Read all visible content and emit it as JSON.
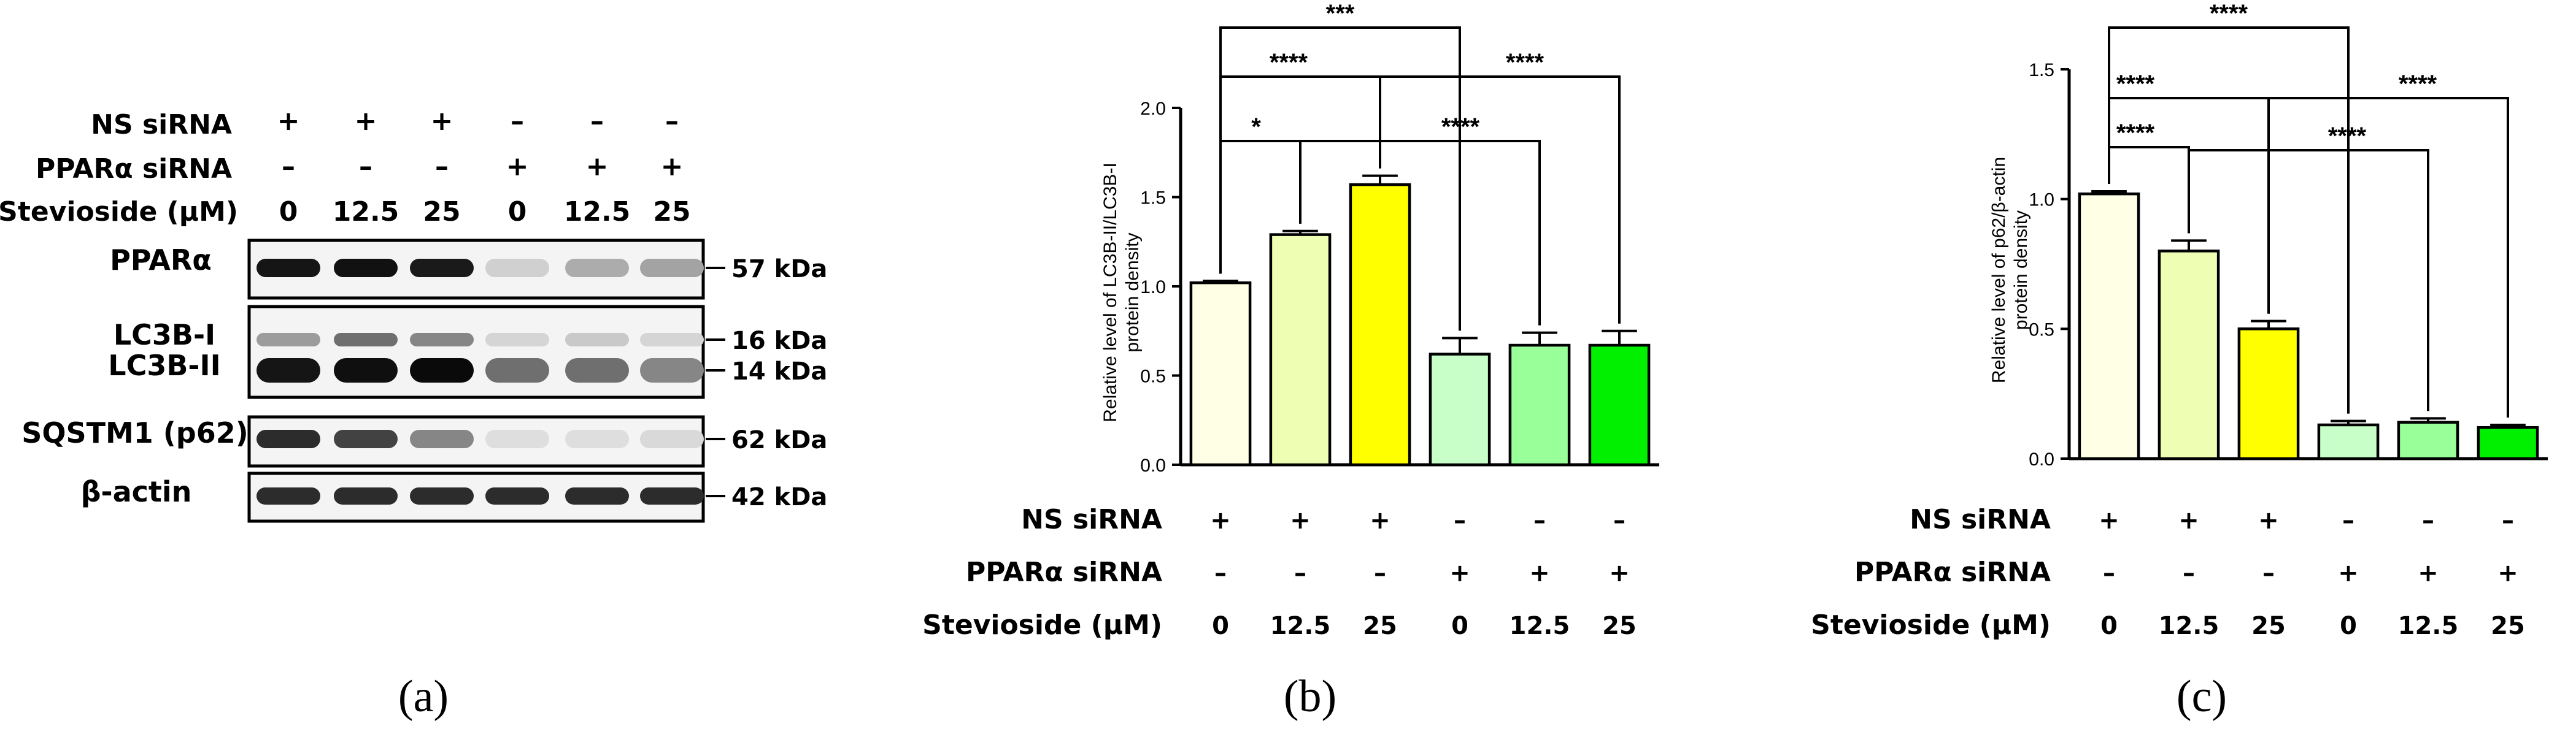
{
  "panel_labels": [
    "(a)",
    "(b)",
    "(c)"
  ],
  "western_blot": {
    "conditions": {
      "ns_label": "NS siRNA",
      "ppar_label": "PPARα siRNA",
      "stev_label": "Stevioside (μM)",
      "ns_signs": [
        "+",
        "+",
        "+",
        "–",
        "–",
        "–"
      ],
      "ppar_signs": [
        "–",
        "–",
        "–",
        "+",
        "+",
        "+"
      ],
      "doses": [
        "0",
        "12.5",
        "25",
        "0",
        "12.5",
        "25"
      ]
    },
    "bands": [
      {
        "label": "PPARα",
        "mw": "57 kDa",
        "intensity": [
          0.95,
          0.97,
          0.93,
          0.12,
          0.28,
          0.32
        ]
      },
      {
        "label": "LC3B-I",
        "mw": "16 kDa",
        "intensity": [
          0.35,
          0.55,
          0.45,
          0.1,
          0.15,
          0.1
        ]
      },
      {
        "label": "LC3B-II",
        "mw": "14 kDa",
        "intensity": [
          0.95,
          0.98,
          1.0,
          0.55,
          0.55,
          0.45
        ]
      },
      {
        "label": "SQSTM1 (p62)",
        "mw": "62 kDa",
        "intensity": [
          0.85,
          0.75,
          0.45,
          0.06,
          0.06,
          0.08
        ]
      },
      {
        "label": "β-actin",
        "mw": "42 kDa",
        "intensity": [
          0.85,
          0.85,
          0.85,
          0.85,
          0.85,
          0.85
        ]
      }
    ]
  },
  "chart_data": [
    {
      "type": "bar",
      "panel": "(b)",
      "ylabel": "Relative level of LC3B-II/LC3B-I protein density",
      "ylabel_lines": [
        "Relative level of LC3B-II/LC3B-I",
        "protein density"
      ],
      "ylim": [
        0,
        2.0
      ],
      "yticks": [
        0.0,
        0.5,
        1.0,
        1.5,
        2.0
      ],
      "ytick_labels": [
        "0.0",
        "0.5",
        "1.0",
        "1.5",
        "2.0"
      ],
      "values": [
        1.02,
        1.29,
        1.57,
        0.62,
        0.67,
        0.67
      ],
      "errors": [
        0.01,
        0.02,
        0.05,
        0.09,
        0.07,
        0.08
      ],
      "colors": [
        "#FFFFE6",
        "#EEFFB4",
        "#FFFF00",
        "#C8FFC8",
        "#99FF99",
        "#00F000"
      ],
      "condition_labels": {
        "ns": "NS siRNA",
        "ppar": "PPARα siRNA",
        "stev": "Stevioside (μM)"
      },
      "ns_signs": [
        "+",
        "+",
        "+",
        "–",
        "–",
        "–"
      ],
      "ppar_signs": [
        "–",
        "–",
        "–",
        "+",
        "+",
        "+"
      ],
      "doses": [
        "0",
        "12.5",
        "25",
        "0",
        "12.5",
        "25"
      ],
      "significance": [
        {
          "from": 0,
          "to": 3,
          "label": "***"
        },
        {
          "from": 0,
          "to": 2,
          "label": "****"
        },
        {
          "from": 0,
          "to": 1,
          "label": "*"
        },
        {
          "from": 2,
          "to": 5,
          "label": "****"
        },
        {
          "from": 1,
          "to": 4,
          "label": "****"
        }
      ]
    },
    {
      "type": "bar",
      "panel": "(c)",
      "ylabel": "Relative level of p62/β-actin protein density",
      "ylabel_lines": [
        "Relative level of p62/β-actin",
        "protein density"
      ],
      "ylim": [
        0,
        1.5
      ],
      "yticks": [
        0.0,
        0.5,
        1.0,
        1.5
      ],
      "ytick_labels": [
        "0.0",
        "0.5",
        "1.0",
        "1.5"
      ],
      "values": [
        1.02,
        0.8,
        0.5,
        0.13,
        0.14,
        0.12
      ],
      "errors": [
        0.01,
        0.04,
        0.03,
        0.015,
        0.015,
        0.01
      ],
      "colors": [
        "#FFFFE6",
        "#EEFFB4",
        "#FFFF00",
        "#C8FFC8",
        "#99FF99",
        "#00F000"
      ],
      "condition_labels": {
        "ns": "NS siRNA",
        "ppar": "PPARα siRNA",
        "stev": "Stevioside (μM)"
      },
      "ns_signs": [
        "+",
        "+",
        "+",
        "–",
        "–",
        "–"
      ],
      "ppar_signs": [
        "–",
        "–",
        "–",
        "+",
        "+",
        "+"
      ],
      "doses": [
        "0",
        "12.5",
        "25",
        "0",
        "12.5",
        "25"
      ],
      "significance": [
        {
          "from": 0,
          "to": 3,
          "label": "****"
        },
        {
          "from": 0,
          "to": 2,
          "label": "****"
        },
        {
          "from": 0,
          "to": 1,
          "label": "****"
        },
        {
          "from": 2,
          "to": 5,
          "label": "****"
        },
        {
          "from": 1,
          "to": 4,
          "label": "****"
        }
      ]
    }
  ]
}
